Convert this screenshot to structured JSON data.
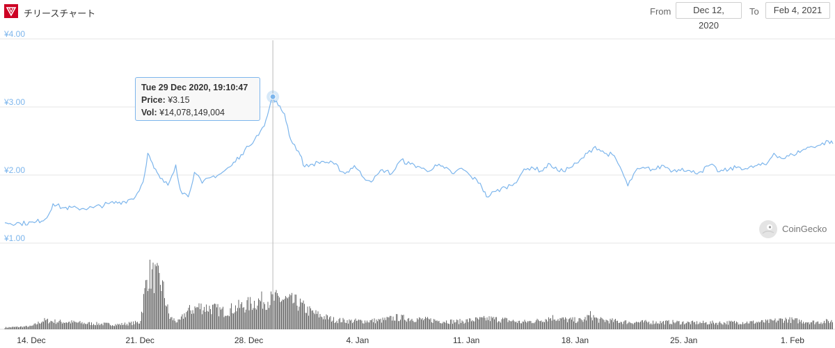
{
  "header": {
    "title": "チリースチャート",
    "from_label": "From",
    "from_value": "Dec 12, 2020",
    "to_label": "To",
    "to_value": "Feb 4, 2021",
    "logo_icon": "chiliz-logo-icon",
    "logo_color": "#cd0124"
  },
  "tooltip": {
    "date": "Tue 29 Dec 2020, 19:10:47",
    "price_label": "Price:",
    "price_value": "¥3.15",
    "vol_label": "Vol:",
    "vol_value": "¥14,078,149,004"
  },
  "watermark": {
    "text": "CoinGecko",
    "icon": "gecko-icon"
  },
  "chart_data": {
    "type": "line",
    "x_unit": "days since Dec 13, 2020",
    "y_ticks": [
      "¥4.00",
      "¥3.00",
      "¥2.00",
      "¥1.00"
    ],
    "ylim": [
      1.0,
      4.0
    ],
    "x_ticks": [
      {
        "d": 1,
        "label": "14. Dec"
      },
      {
        "d": 8,
        "label": "21. Dec"
      },
      {
        "d": 15,
        "label": "28. Dec"
      },
      {
        "d": 22,
        "label": "4. Jan"
      },
      {
        "d": 29,
        "label": "11. Jan"
      },
      {
        "d": 36,
        "label": "18. Jan"
      },
      {
        "d": 43,
        "label": "25. Jan"
      },
      {
        "d": 50,
        "label": "1. Feb"
      }
    ],
    "xlim": [
      -0.7,
      52.6
    ],
    "series": [
      {
        "name": "Price",
        "color": "#7cb5ec",
        "points": [
          [
            -0.7,
            1.3
          ],
          [
            0.3,
            1.29
          ],
          [
            1.2,
            1.3
          ],
          [
            2.0,
            1.37
          ],
          [
            2.4,
            1.58
          ],
          [
            3.0,
            1.52
          ],
          [
            4.0,
            1.51
          ],
          [
            5.0,
            1.52
          ],
          [
            6.0,
            1.58
          ],
          [
            7.0,
            1.61
          ],
          [
            7.7,
            1.68
          ],
          [
            8.2,
            1.9
          ],
          [
            8.5,
            2.32
          ],
          [
            8.9,
            2.1
          ],
          [
            9.3,
            1.95
          ],
          [
            9.8,
            1.85
          ],
          [
            10.3,
            2.15
          ],
          [
            10.6,
            1.78
          ],
          [
            11.1,
            1.68
          ],
          [
            11.5,
            2.04
          ],
          [
            12.0,
            1.88
          ],
          [
            12.5,
            1.96
          ],
          [
            13.2,
            2.02
          ],
          [
            13.9,
            2.14
          ],
          [
            14.5,
            2.3
          ],
          [
            15.0,
            2.42
          ],
          [
            15.5,
            2.58
          ],
          [
            16.0,
            2.72
          ],
          [
            16.3,
            2.96
          ],
          [
            16.55,
            3.15
          ],
          [
            16.9,
            3.02
          ],
          [
            17.3,
            2.9
          ],
          [
            17.7,
            2.52
          ],
          [
            18.2,
            2.35
          ],
          [
            18.6,
            2.12
          ],
          [
            19.1,
            2.16
          ],
          [
            19.8,
            2.2
          ],
          [
            20.5,
            2.16
          ],
          [
            21.2,
            2.02
          ],
          [
            21.8,
            2.14
          ],
          [
            22.4,
            1.96
          ],
          [
            23.0,
            1.92
          ],
          [
            23.6,
            2.08
          ],
          [
            24.2,
            2.02
          ],
          [
            24.8,
            2.22
          ],
          [
            25.4,
            2.16
          ],
          [
            26.0,
            2.12
          ],
          [
            26.5,
            2.05
          ],
          [
            27.0,
            2.15
          ],
          [
            27.6,
            2.1
          ],
          [
            28.2,
            2.02
          ],
          [
            28.7,
            2.1
          ],
          [
            29.3,
            1.98
          ],
          [
            29.9,
            1.88
          ],
          [
            30.3,
            1.68
          ],
          [
            30.9,
            1.76
          ],
          [
            31.5,
            1.82
          ],
          [
            32.1,
            1.88
          ],
          [
            32.6,
            2.04
          ],
          [
            33.2,
            2.12
          ],
          [
            33.8,
            2.06
          ],
          [
            34.4,
            2.16
          ],
          [
            35.0,
            2.05
          ],
          [
            35.6,
            2.1
          ],
          [
            36.2,
            2.18
          ],
          [
            36.8,
            2.32
          ],
          [
            37.3,
            2.42
          ],
          [
            37.9,
            2.32
          ],
          [
            38.4,
            2.3
          ],
          [
            38.9,
            2.12
          ],
          [
            39.4,
            1.84
          ],
          [
            39.9,
            2.06
          ],
          [
            40.5,
            2.1
          ],
          [
            41.1,
            2.08
          ],
          [
            41.7,
            2.14
          ],
          [
            42.3,
            2.06
          ],
          [
            42.9,
            2.1
          ],
          [
            43.5,
            2.04
          ],
          [
            44.1,
            2.05
          ],
          [
            44.7,
            2.15
          ],
          [
            45.3,
            2.05
          ],
          [
            45.9,
            2.08
          ],
          [
            46.5,
            2.12
          ],
          [
            47.1,
            2.09
          ],
          [
            47.7,
            2.14
          ],
          [
            48.3,
            2.15
          ],
          [
            48.8,
            2.32
          ],
          [
            49.4,
            2.24
          ],
          [
            50.0,
            2.3
          ],
          [
            50.6,
            2.36
          ],
          [
            51.2,
            2.42
          ],
          [
            51.8,
            2.44
          ],
          [
            52.3,
            2.5
          ],
          [
            52.6,
            2.46
          ]
        ]
      }
    ],
    "volume": {
      "color": "#666666",
      "points": [
        [
          -0.7,
          0.03
        ],
        [
          1.0,
          0.05
        ],
        [
          1.8,
          0.15
        ],
        [
          2.6,
          0.13
        ],
        [
          3.6,
          0.12
        ],
        [
          4.6,
          0.1
        ],
        [
          5.6,
          0.09
        ],
        [
          6.6,
          0.08
        ],
        [
          7.4,
          0.1
        ],
        [
          8.0,
          0.12
        ],
        [
          8.5,
          0.95
        ],
        [
          9.0,
          0.88
        ],
        [
          9.4,
          0.78
        ],
        [
          9.9,
          0.2
        ],
        [
          10.5,
          0.12
        ],
        [
          11.0,
          0.3
        ],
        [
          11.8,
          0.38
        ],
        [
          12.6,
          0.36
        ],
        [
          13.4,
          0.3
        ],
        [
          14.2,
          0.37
        ],
        [
          15.0,
          0.42
        ],
        [
          15.6,
          0.48
        ],
        [
          16.3,
          0.5
        ],
        [
          17.0,
          0.52
        ],
        [
          17.6,
          0.48
        ],
        [
          18.2,
          0.44
        ],
        [
          18.8,
          0.32
        ],
        [
          19.5,
          0.24
        ],
        [
          20.5,
          0.16
        ],
        [
          21.5,
          0.14
        ],
        [
          22.5,
          0.14
        ],
        [
          23.5,
          0.15
        ],
        [
          24.5,
          0.2
        ],
        [
          25.5,
          0.18
        ],
        [
          26.5,
          0.16
        ],
        [
          27.5,
          0.14
        ],
        [
          28.5,
          0.13
        ],
        [
          29.5,
          0.16
        ],
        [
          30.5,
          0.18
        ],
        [
          31.5,
          0.16
        ],
        [
          32.5,
          0.12
        ],
        [
          33.5,
          0.14
        ],
        [
          34.5,
          0.2
        ],
        [
          35.5,
          0.16
        ],
        [
          36.5,
          0.15
        ],
        [
          37.0,
          0.24
        ],
        [
          37.5,
          0.16
        ],
        [
          38.5,
          0.14
        ],
        [
          39.5,
          0.12
        ],
        [
          40.5,
          0.12
        ],
        [
          41.5,
          0.12
        ],
        [
          42.5,
          0.12
        ],
        [
          43.5,
          0.11
        ],
        [
          44.5,
          0.11
        ],
        [
          45.5,
          0.11
        ],
        [
          46.5,
          0.12
        ],
        [
          47.5,
          0.12
        ],
        [
          48.5,
          0.13
        ],
        [
          49.5,
          0.17
        ],
        [
          50.5,
          0.14
        ],
        [
          51.5,
          0.12
        ],
        [
          52.6,
          0.14
        ]
      ]
    },
    "crosshair_x": 16.55,
    "grid": true
  }
}
